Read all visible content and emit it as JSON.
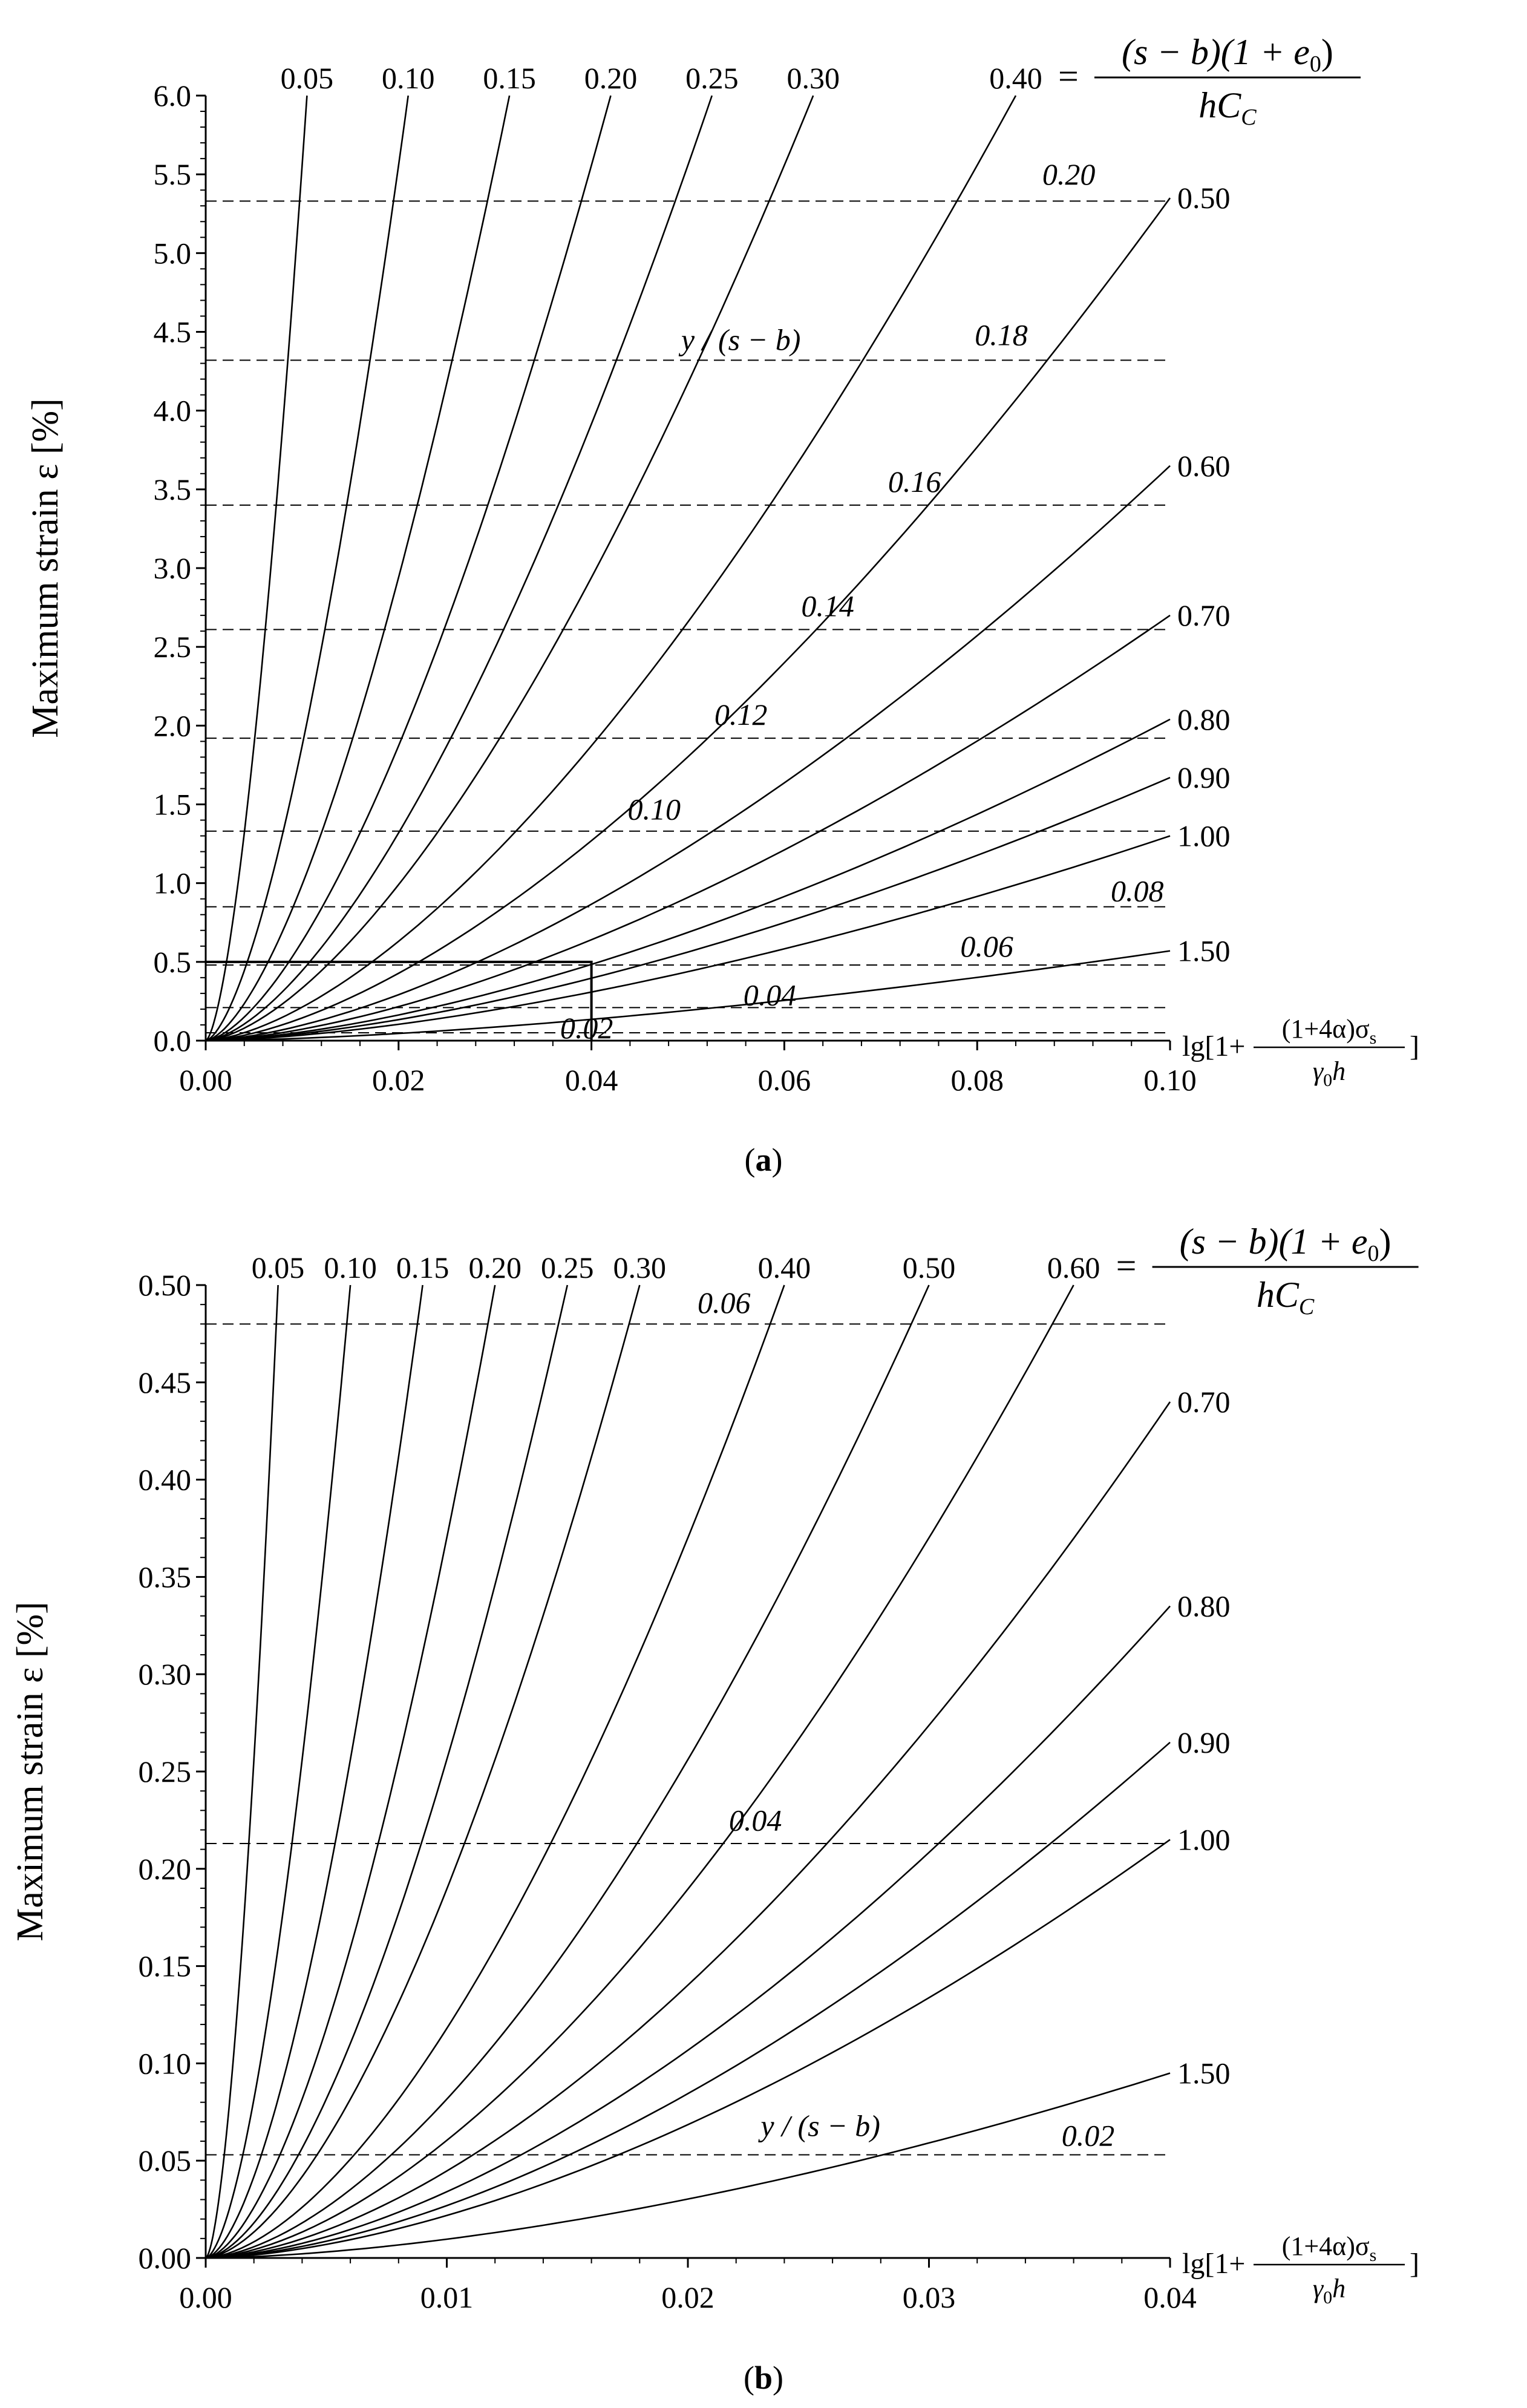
{
  "chart_data": [
    {
      "type": "line",
      "panel": "a",
      "panel_label": "(a)",
      "panel_letter": "a",
      "ylabel": "Maximum strain ε [%]",
      "xlabel": {
        "prefix": "lg[1+",
        "numerator": "(1+4α)σ",
        "numerator_sub": "s",
        "denominator": "γ",
        "denominator_sub": "0",
        "denominator_tail": "h",
        "suffix": "]"
      },
      "formula": {
        "equals": "=",
        "numerator": "(s − b)(1 + e",
        "numerator_sub": "0",
        "numerator_tail": ")",
        "denominator": "hC",
        "denominator_sub": "C"
      },
      "xlim": [
        0,
        0.1
      ],
      "ylim": [
        0,
        6.0
      ],
      "x_ticks": [
        "0.00",
        "0.02",
        "0.04",
        "0.06",
        "0.08",
        "0.10"
      ],
      "y_ticks": [
        "0.0",
        "0.5",
        "1.0",
        "1.5",
        "2.0",
        "2.5",
        "3.0",
        "3.5",
        "4.0",
        "4.5",
        "5.0",
        "5.5",
        "6.0"
      ],
      "series": [
        {
          "name": "0.05",
          "label": "0.05",
          "x_end": 0.0105,
          "y_end": 6.0,
          "p": 1.57,
          "label_pos": "top"
        },
        {
          "name": "0.10",
          "label": "0.10",
          "x_end": 0.021,
          "y_end": 6.0,
          "p": 1.57,
          "label_pos": "top"
        },
        {
          "name": "0.15",
          "label": "0.15",
          "x_end": 0.0315,
          "y_end": 6.0,
          "p": 1.57,
          "label_pos": "top"
        },
        {
          "name": "0.20",
          "label": "0.20",
          "x_end": 0.042,
          "y_end": 6.0,
          "p": 1.57,
          "label_pos": "top"
        },
        {
          "name": "0.25",
          "label": "0.25",
          "x_end": 0.0525,
          "y_end": 6.0,
          "p": 1.57,
          "label_pos": "top"
        },
        {
          "name": "0.30",
          "label": "0.30",
          "x_end": 0.063,
          "y_end": 6.0,
          "p": 1.57,
          "label_pos": "top"
        },
        {
          "name": "0.40",
          "label": "0.40",
          "x_end": 0.084,
          "y_end": 6.0,
          "p": 1.57,
          "label_pos": "top"
        },
        {
          "name": "0.50",
          "label": "0.50",
          "x_end": 0.1,
          "y_end": 5.35,
          "p": 1.57,
          "label_pos": "right"
        },
        {
          "name": "0.60",
          "label": "0.60",
          "x_end": 0.1,
          "y_end": 3.65,
          "p": 1.57,
          "label_pos": "right"
        },
        {
          "name": "0.70",
          "label": "0.70",
          "x_end": 0.1,
          "y_end": 2.7,
          "p": 1.57,
          "label_pos": "right"
        },
        {
          "name": "0.80",
          "label": "0.80",
          "x_end": 0.1,
          "y_end": 2.04,
          "p": 1.57,
          "label_pos": "right"
        },
        {
          "name": "0.90",
          "label": "0.90",
          "x_end": 0.1,
          "y_end": 1.67,
          "p": 1.57,
          "label_pos": "right"
        },
        {
          "name": "1.00",
          "label": "1.00",
          "x_end": 0.1,
          "y_end": 1.3,
          "p": 1.57,
          "label_pos": "right"
        },
        {
          "name": "1.50",
          "label": "1.50",
          "x_end": 0.1,
          "y_end": 0.57,
          "p": 1.57,
          "label_pos": "right"
        }
      ],
      "guide_caption": "y / (s − b)",
      "guide_caption_pos": [
        0.0555,
        4.45
      ],
      "guides": [
        {
          "y": 5.33,
          "label": "0.20",
          "label_x": 0.0895,
          "label_y": 5.5
        },
        {
          "y": 4.32,
          "label": "0.18",
          "label_x": 0.0825,
          "label_y": 4.48
        },
        {
          "y": 3.4,
          "label": "0.16",
          "label_x": 0.0735,
          "label_y": 3.55
        },
        {
          "y": 2.61,
          "label": "0.14",
          "label_x": 0.0645,
          "label_y": 2.76
        },
        {
          "y": 1.92,
          "label": "0.12",
          "label_x": 0.0555,
          "label_y": 2.07
        },
        {
          "y": 1.33,
          "label": "0.10",
          "label_x": 0.0465,
          "label_y": 1.47
        },
        {
          "y": 0.85,
          "label": "0.08",
          "label_x": 0.0966,
          "label_y": 0.95
        },
        {
          "y": 0.48,
          "label": "0.06",
          "label_x": 0.081,
          "label_y": 0.6
        },
        {
          "y": 0.21,
          "label": "0.04",
          "label_x": 0.0585,
          "label_y": 0.29
        },
        {
          "y": 0.05,
          "label": "0.02",
          "label_x": 0.0395,
          "label_y": 0.08
        }
      ],
      "highlight_box": {
        "x": [
          0,
          0.04
        ],
        "y": [
          0,
          0.5
        ]
      }
    },
    {
      "type": "line",
      "panel": "b",
      "panel_label": "(b)",
      "panel_letter": "b",
      "ylabel": "Maximum strain ε [%]",
      "xlabel": {
        "prefix": "lg[1+",
        "numerator": "(1+4α)σ",
        "numerator_sub": "s",
        "denominator": "γ",
        "denominator_sub": "0",
        "denominator_tail": "h",
        "suffix": "]"
      },
      "formula": {
        "equals": "=",
        "numerator": "(s − b)(1 + e",
        "numerator_sub": "0",
        "numerator_tail": ")",
        "denominator": "hC",
        "denominator_sub": "C"
      },
      "xlim": [
        0,
        0.04
      ],
      "ylim": [
        0,
        0.5
      ],
      "x_ticks": [
        "0.00",
        "0.01",
        "0.02",
        "0.03",
        "0.04"
      ],
      "y_ticks": [
        "0.00",
        "0.05",
        "0.10",
        "0.15",
        "0.20",
        "0.25",
        "0.30",
        "0.35",
        "0.40",
        "0.45",
        "0.50"
      ],
      "series": [
        {
          "name": "0.05",
          "label": "0.05",
          "x_end": 0.003,
          "y_end": 0.5,
          "p": 1.65,
          "label_pos": "top"
        },
        {
          "name": "0.10",
          "label": "0.10",
          "x_end": 0.006,
          "y_end": 0.5,
          "p": 1.65,
          "label_pos": "top"
        },
        {
          "name": "0.15",
          "label": "0.15",
          "x_end": 0.009,
          "y_end": 0.5,
          "p": 1.65,
          "label_pos": "top"
        },
        {
          "name": "0.20",
          "label": "0.20",
          "x_end": 0.012,
          "y_end": 0.5,
          "p": 1.65,
          "label_pos": "top"
        },
        {
          "name": "0.25",
          "label": "0.25",
          "x_end": 0.015,
          "y_end": 0.5,
          "p": 1.65,
          "label_pos": "top"
        },
        {
          "name": "0.30",
          "label": "0.30",
          "x_end": 0.018,
          "y_end": 0.5,
          "p": 1.65,
          "label_pos": "top"
        },
        {
          "name": "0.40",
          "label": "0.40",
          "x_end": 0.024,
          "y_end": 0.5,
          "p": 1.65,
          "label_pos": "top"
        },
        {
          "name": "0.50",
          "label": "0.50",
          "x_end": 0.03,
          "y_end": 0.5,
          "p": 1.65,
          "label_pos": "top"
        },
        {
          "name": "0.60",
          "label": "0.60",
          "x_end": 0.036,
          "y_end": 0.5,
          "p": 1.65,
          "label_pos": "top"
        },
        {
          "name": "0.70",
          "label": "0.70",
          "x_end": 0.04,
          "y_end": 0.44,
          "p": 1.65,
          "label_pos": "right"
        },
        {
          "name": "0.80",
          "label": "0.80",
          "x_end": 0.04,
          "y_end": 0.335,
          "p": 1.65,
          "label_pos": "right"
        },
        {
          "name": "0.90",
          "label": "0.90",
          "x_end": 0.04,
          "y_end": 0.265,
          "p": 1.65,
          "label_pos": "right"
        },
        {
          "name": "1.00",
          "label": "1.00",
          "x_end": 0.04,
          "y_end": 0.215,
          "p": 1.65,
          "label_pos": "right"
        },
        {
          "name": "1.50",
          "label": "1.50",
          "x_end": 0.04,
          "y_end": 0.095,
          "p": 1.65,
          "label_pos": "right"
        }
      ],
      "guide_caption": "y / (s − b)",
      "guide_caption_pos": [
        0.0255,
        0.068
      ],
      "guides": [
        {
          "y": 0.48,
          "label": "0.06",
          "label_x": 0.0215,
          "label_y": 0.491
        },
        {
          "y": 0.213,
          "label": "0.04",
          "label_x": 0.0228,
          "label_y": 0.225
        },
        {
          "y": 0.053,
          "label": "0.02",
          "label_x": 0.0366,
          "label_y": 0.063
        }
      ]
    }
  ]
}
